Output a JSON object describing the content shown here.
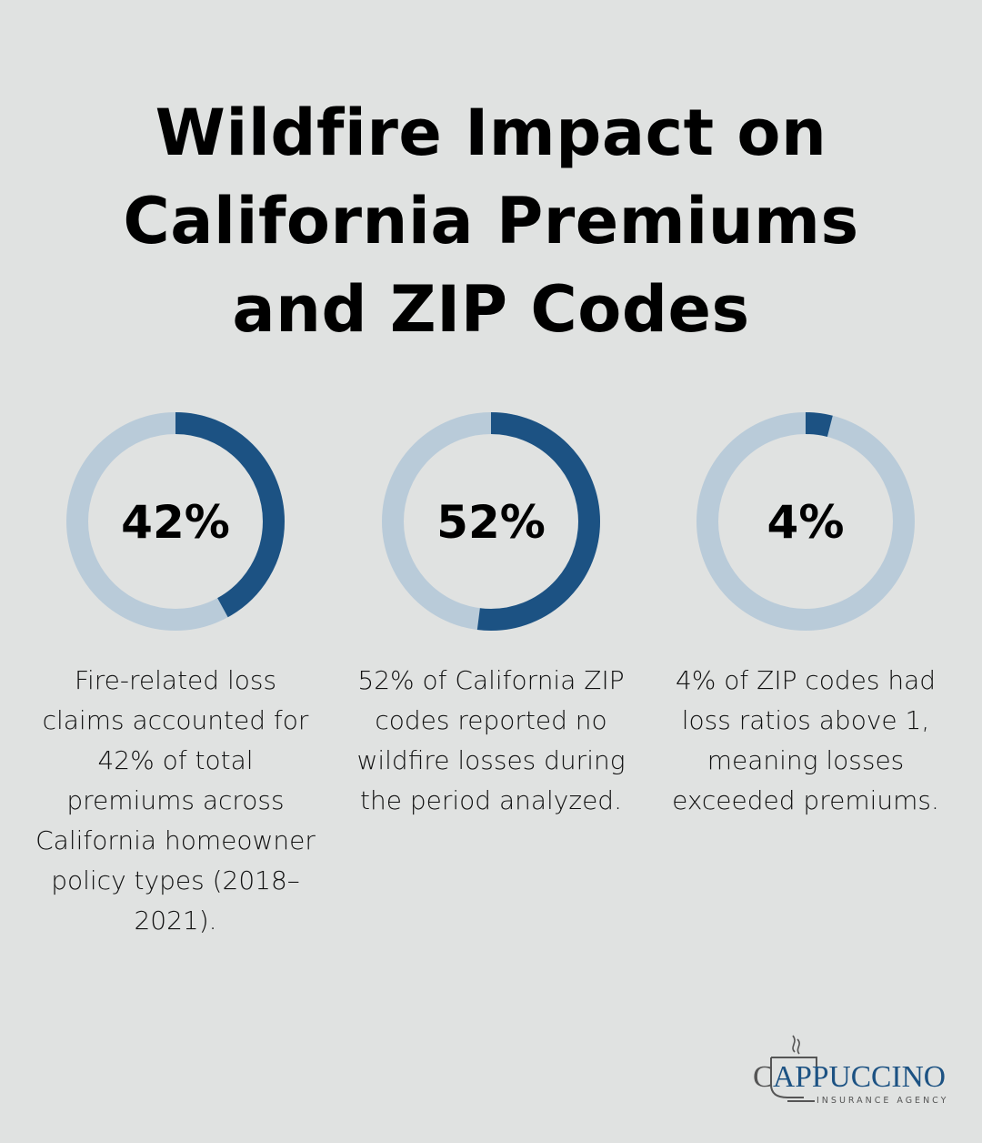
{
  "title": "Wildfire Impact on California Premiums and ZIP Codes",
  "colors": {
    "fill": "#1c5283",
    "track": "#b9cbd9",
    "background": "#e0e2e1"
  },
  "chart_data": [
    {
      "type": "pie",
      "variant": "donut",
      "value": 42,
      "max": 100,
      "label": "42%",
      "description": "Fire-related loss claims accounted for 42% of total premiums across California homeowner policy types (2018–2021)."
    },
    {
      "type": "pie",
      "variant": "donut",
      "value": 52,
      "max": 100,
      "label": "52%",
      "description": "52% of California ZIP codes reported no wildfire losses during the period analyzed."
    },
    {
      "type": "pie",
      "variant": "donut",
      "value": 4,
      "max": 100,
      "label": "4%",
      "description": "4% of ZIP codes had loss ratios above 1, meaning losses exceeded premiums."
    }
  ],
  "logo": {
    "name": "CAPPUCCINO",
    "tagline": "INSURANCE AGENCY"
  }
}
